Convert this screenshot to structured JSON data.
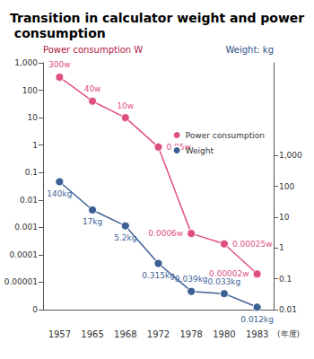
{
  "chart_data": {
    "type": "line",
    "title": "Transition in calculator weight and power consumption",
    "x_label": "(年度)",
    "y_label": "Power consumption W",
    "y2_label": "Weight: kg",
    "categories": [
      "1957",
      "1965",
      "1968",
      "1972",
      "1978",
      "1980",
      "1983"
    ],
    "series": [
      {
        "name": "Power consumption",
        "color": "#e0507f",
        "marker": "circle",
        "values": [
          300,
          40,
          10,
          0.85,
          0.0006,
          0.00025,
          2e-05
        ],
        "value_labels": [
          "300w",
          "40w",
          "10w",
          "0.85w",
          "0.0006w",
          "0.00025w",
          "0.00002w"
        ]
      },
      {
        "name": "Weight",
        "color": "#3d5f96",
        "marker": "circle",
        "axis": "y2",
        "values": [
          140,
          17,
          5.2,
          0.315,
          0.039,
          0.033,
          0.012
        ],
        "value_labels": [
          "140kg",
          "17kg",
          "5.2kg",
          "0.315kg",
          "0.039kg",
          "0.033kg",
          "0.012kg"
        ]
      }
    ],
    "ylim": [
      1e-06,
      1000
    ],
    "yticks": [
      {
        "value": 1000,
        "label": "1,000"
      },
      100,
      10,
      1,
      0.1,
      0.01,
      0.001,
      0.0001,
      1e-05,
      {
        "value": 1e-06,
        "label": "0"
      }
    ],
    "y2lim": [
      0.01,
      1000000
    ],
    "y2ticks": [
      {
        "value": 1000,
        "label": "1,000"
      },
      100,
      10,
      1,
      0.1,
      0.01
    ],
    "log": "y",
    "grid": false,
    "legend": "upper right",
    "data_labels": true
  }
}
